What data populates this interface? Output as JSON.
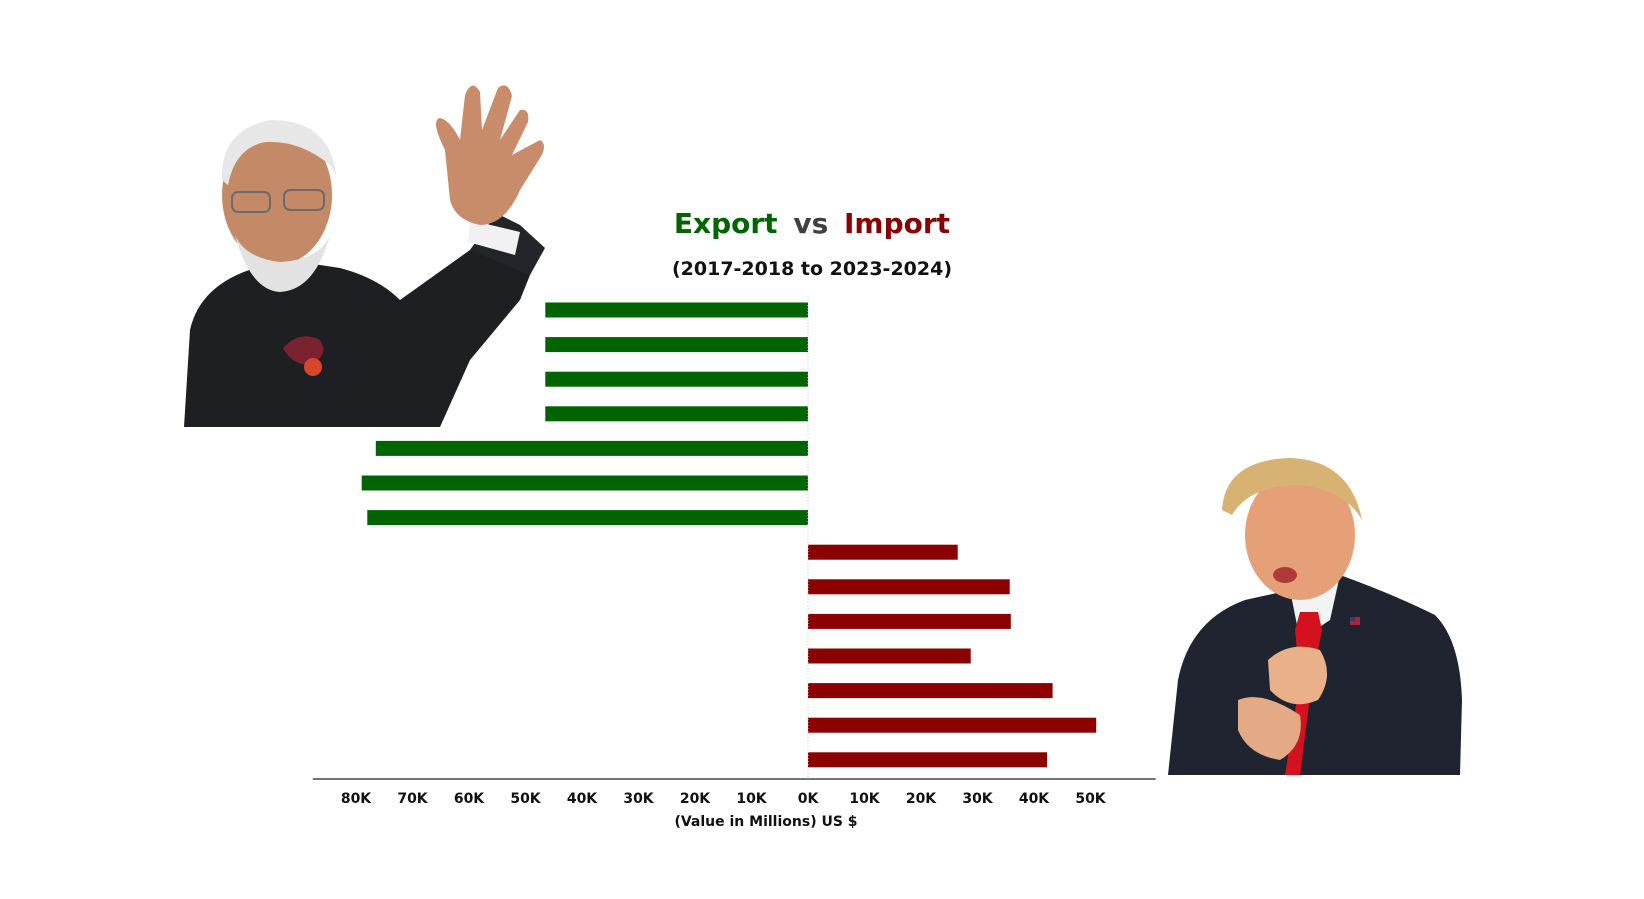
{
  "title": {
    "part1": "Export",
    "part2": "vs",
    "part3": "Import"
  },
  "subtitle": "(2017-2018 to 2023-2024)",
  "colors": {
    "export": "#006400",
    "import": "#8b0000",
    "vs": "#404040",
    "text": "#111111"
  },
  "chart_data": {
    "type": "bar",
    "orientation": "horizontal",
    "xlabel": "(Value in Millions) US $",
    "xlim": [
      -85000,
      58000
    ],
    "xticks": [
      -80000,
      -70000,
      -60000,
      -50000,
      -40000,
      -30000,
      -20000,
      -10000,
      0,
      10000,
      20000,
      30000,
      40000,
      50000
    ],
    "xtick_labels": [
      "80K",
      "70K",
      "60K",
      "50K",
      "40K",
      "30K",
      "20K",
      "10K",
      "0K",
      "10K",
      "20K",
      "30K",
      "40K",
      "50K"
    ],
    "grid": false,
    "series": [
      {
        "name": "Export",
        "color": "#006400",
        "values": [
          -46500,
          -46500,
          -46500,
          -46500,
          -76500,
          -79000,
          -78000
        ]
      },
      {
        "name": "Import",
        "color": "#8b0000",
        "values": [
          26500,
          35700,
          35900,
          28800,
          43300,
          51000,
          42300
        ]
      }
    ]
  },
  "images": {
    "left_figure": "person-waving-figure",
    "right_figure": "person-hand-on-chest-figure"
  }
}
